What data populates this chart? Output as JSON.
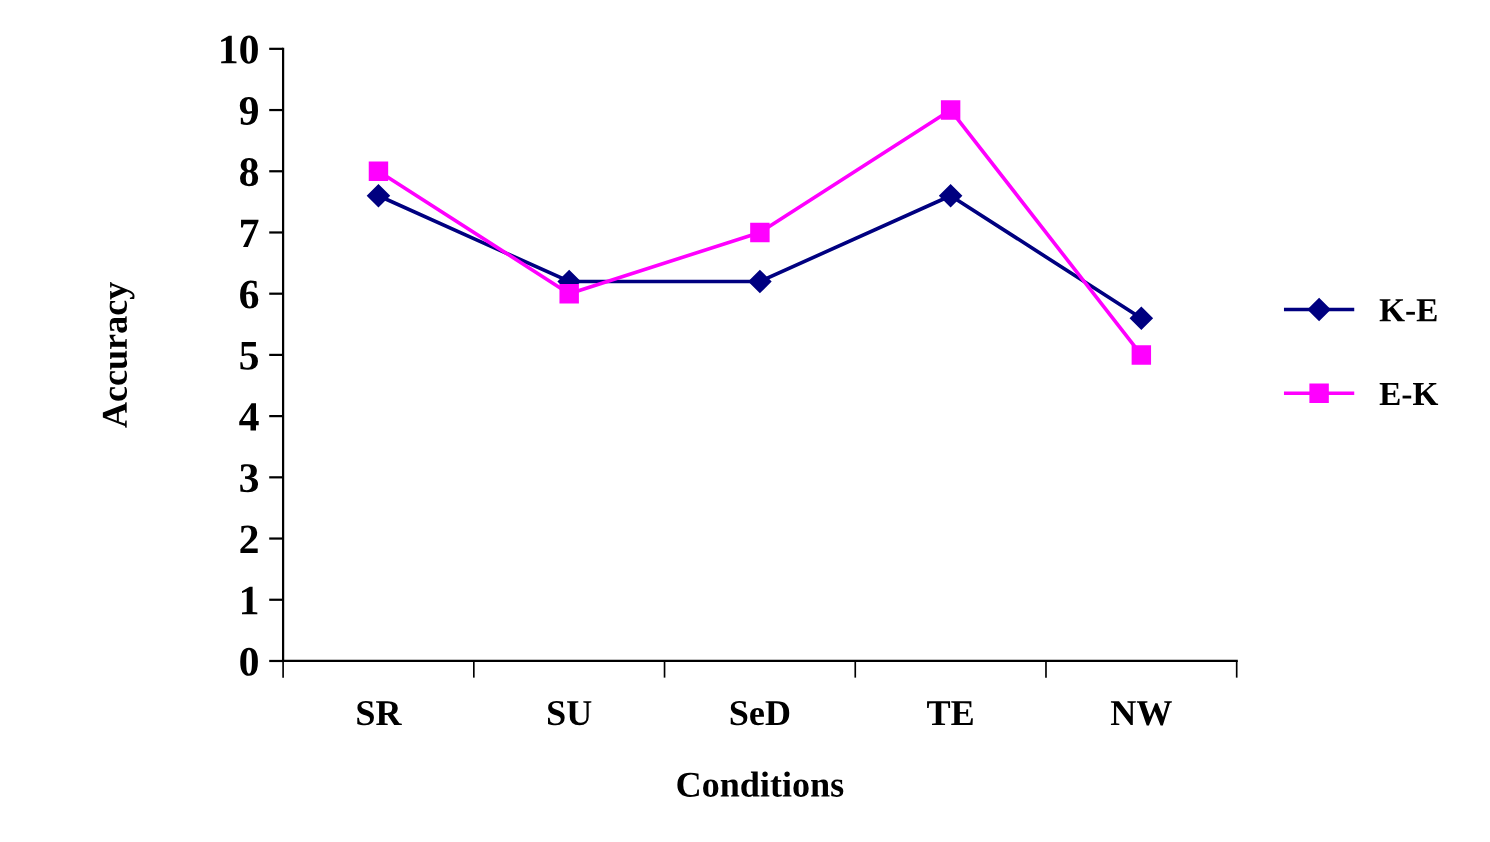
{
  "chart_data": {
    "type": "line",
    "xlabel": "Conditions",
    "ylabel": "Accuracy",
    "categories": [
      "SR",
      "SU",
      "SeD",
      "TE",
      "NW"
    ],
    "series": [
      {
        "name": "K-E",
        "color": "#000080",
        "marker": "diamond",
        "values": [
          7.6,
          6.2,
          6.2,
          7.6,
          5.6
        ]
      },
      {
        "name": "E-K",
        "color": "#ff00ff",
        "marker": "square",
        "values": [
          8,
          6,
          7,
          9,
          5
        ]
      }
    ],
    "ylim": [
      0,
      10
    ],
    "yticks": [
      0,
      1,
      2,
      3,
      4,
      5,
      6,
      7,
      8,
      9,
      10
    ],
    "grid": false,
    "legend": "right",
    "line_style": "solid"
  }
}
